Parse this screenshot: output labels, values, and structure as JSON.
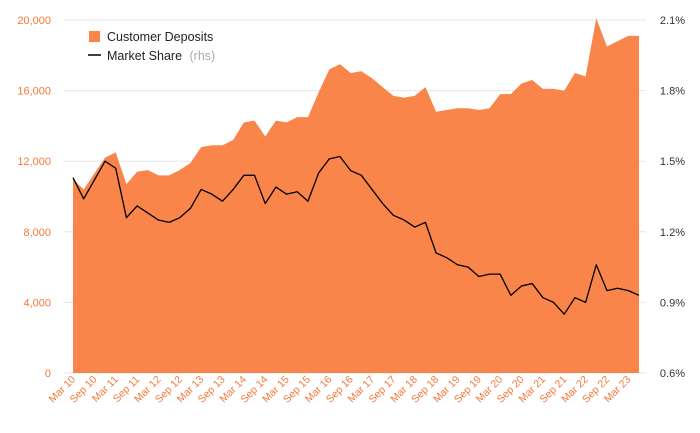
{
  "chart_data": {
    "type": "area",
    "title": "",
    "xlabel": "",
    "ylabel": "",
    "y2label": "",
    "x": [
      "Mar 10",
      "Jun 10",
      "Sep 10",
      "Dec 10",
      "Mar 11",
      "Jun 11",
      "Sep 11",
      "Dec 11",
      "Mar 12",
      "Jun 12",
      "Sep 12",
      "Dec 12",
      "Mar 13",
      "Jun 13",
      "Sep 13",
      "Dec 13",
      "Mar 14",
      "Jun 14",
      "Sep 14",
      "Dec 14",
      "Mar 15",
      "Jun 15",
      "Sep 15",
      "Dec 15",
      "Mar 16",
      "Jun 16",
      "Sep 16",
      "Dec 16",
      "Mar 17",
      "Jun 17",
      "Sep 17",
      "Dec 17",
      "Mar 18",
      "Jun 18",
      "Sep 18",
      "Dec 18",
      "Mar 19",
      "Jun 19",
      "Sep 19",
      "Dec 19",
      "Mar 20",
      "Jun 20",
      "Sep 20",
      "Dec 20",
      "Mar 21",
      "Jun 21",
      "Sep 21",
      "Dec 21",
      "Mar 22",
      "Jun 22",
      "Sep 22",
      "Dec 22",
      "Mar 23",
      "Jun 23"
    ],
    "x_tick_labels": [
      "Mar 10",
      "Sep 10",
      "Mar 11",
      "Sep 11",
      "Mar 12",
      "Sep 12",
      "Mar 13",
      "Sep 13",
      "Mar 14",
      "Sep 14",
      "Mar 15",
      "Sep 15",
      "Mar 16",
      "Sep 16",
      "Mar 17",
      "Sep 17",
      "Mar 18",
      "Sep 18",
      "Mar 19",
      "Sep 19",
      "Mar 20",
      "Sep 20",
      "Mar 21",
      "Sep 21",
      "Mar 22",
      "Sep 22",
      "Mar 23"
    ],
    "y_ticks": [
      "0",
      "4,000",
      "8,000",
      "12,000",
      "16,000",
      "20,000"
    ],
    "y2_ticks": [
      "0.6%",
      "0.9%",
      "1.2%",
      "1.5%",
      "1.8%",
      "2.1%"
    ],
    "ylim": [
      0,
      20000
    ],
    "y2lim": [
      0.6,
      2.1
    ],
    "grid": true,
    "legend_position": "top-left",
    "series": [
      {
        "name": "Customer Deposits",
        "type": "area",
        "axis": "left",
        "color": "#f9854a",
        "values": [
          11000,
          10400,
          11300,
          12200,
          12500,
          10700,
          11400,
          11500,
          11200,
          11200,
          11500,
          11900,
          12800,
          12900,
          12900,
          13200,
          14200,
          14300,
          13400,
          14300,
          14200,
          14500,
          14500,
          15900,
          17200,
          17500,
          17000,
          17100,
          16700,
          16200,
          15700,
          15600,
          15700,
          16200,
          14800,
          14900,
          15000,
          15000,
          14900,
          15000,
          15800,
          15800,
          16400,
          16600,
          16100,
          16100,
          16000,
          17000,
          16800,
          20100,
          18500,
          18800,
          19100,
          19100
        ]
      },
      {
        "name": "Market Share",
        "axis_label": "(rhs)",
        "type": "line",
        "axis": "right",
        "color": "#000000",
        "values": [
          1.43,
          1.34,
          1.42,
          1.5,
          1.47,
          1.26,
          1.31,
          1.28,
          1.25,
          1.24,
          1.26,
          1.3,
          1.38,
          1.36,
          1.33,
          1.38,
          1.44,
          1.44,
          1.32,
          1.39,
          1.36,
          1.37,
          1.33,
          1.45,
          1.51,
          1.52,
          1.46,
          1.44,
          1.38,
          1.32,
          1.27,
          1.25,
          1.22,
          1.24,
          1.11,
          1.09,
          1.06,
          1.05,
          1.01,
          1.02,
          1.02,
          0.93,
          0.97,
          0.98,
          0.92,
          0.9,
          0.85,
          0.92,
          0.9,
          1.06,
          0.95,
          0.96,
          0.95,
          0.93
        ]
      }
    ]
  },
  "legend": [
    {
      "label": "Customer Deposits",
      "suffix": ""
    },
    {
      "label": "Market Share",
      "suffix": "(rhs)"
    }
  ]
}
